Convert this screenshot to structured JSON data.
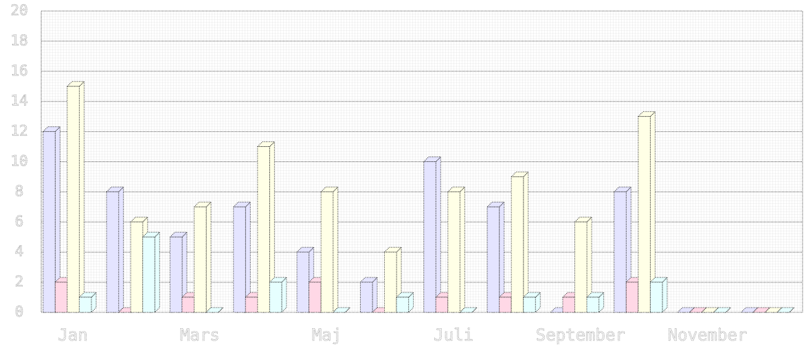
{
  "chart_data": {
    "type": "bar3d",
    "categories": [
      "Jan",
      null,
      "Mars",
      null,
      "Maj",
      null,
      "Juli",
      null,
      "September",
      null,
      "November",
      null
    ],
    "series": [
      {
        "color": "#e4e4ff",
        "values": [
          12,
          8,
          5,
          7,
          4,
          2,
          10,
          7,
          0,
          8,
          0,
          0
        ]
      },
      {
        "color": "#ffd8e6",
        "values": [
          2,
          0,
          1,
          1,
          2,
          0,
          1,
          1,
          1,
          2,
          0,
          0
        ]
      },
      {
        "color": "#ffffe6",
        "values": [
          15,
          6,
          7,
          11,
          8,
          4,
          8,
          9,
          6,
          13,
          0,
          0
        ]
      },
      {
        "color": "#e6ffff",
        "values": [
          1,
          5,
          0,
          2,
          0,
          1,
          0,
          1,
          1,
          2,
          0,
          0
        ]
      }
    ],
    "ylim": [
      0,
      20
    ],
    "yticks": [
      0,
      2,
      4,
      6,
      8,
      10,
      12,
      14,
      16,
      18,
      20
    ],
    "grid": true
  }
}
